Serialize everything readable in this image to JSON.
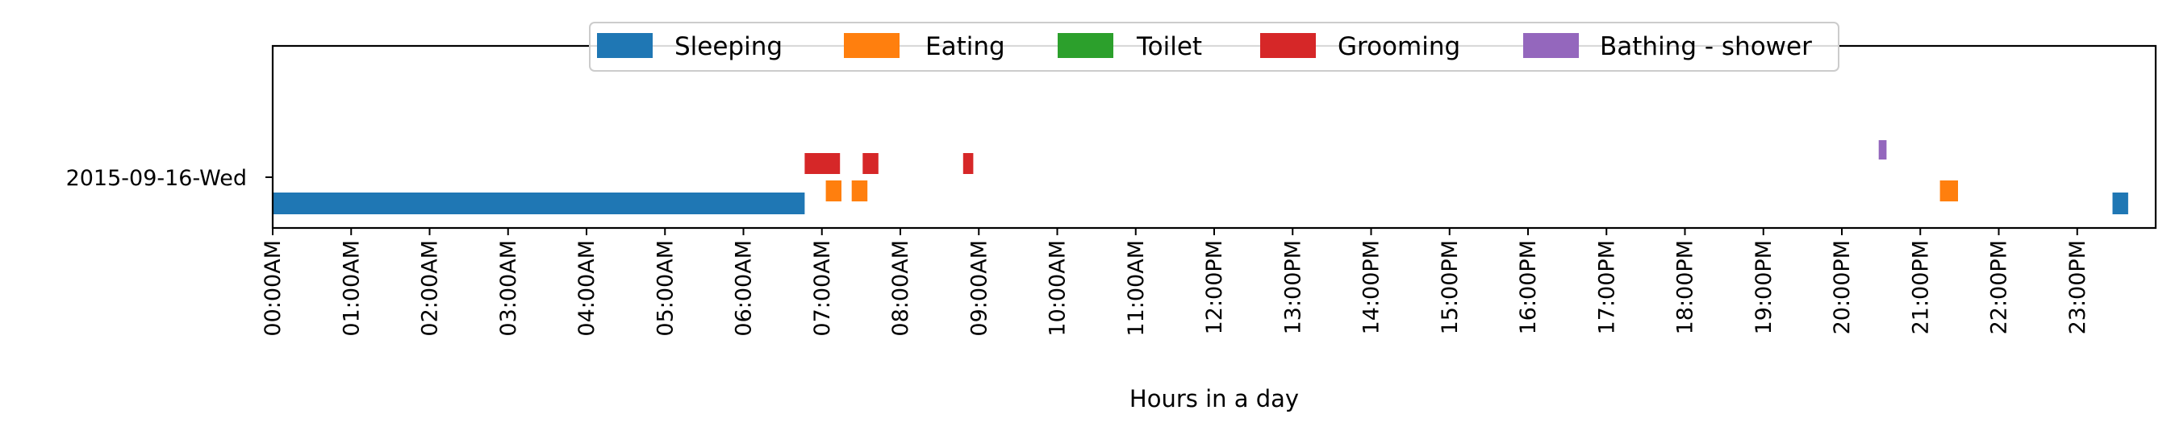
{
  "chart_data": {
    "type": "bar",
    "orientation": "horizontal-timeline",
    "title": "",
    "xlabel": "Hours in a day",
    "ylabel": "",
    "xlim_hours": [
      0,
      24
    ],
    "x_tick_labels": [
      "00:00AM",
      "01:00AM",
      "02:00AM",
      "03:00AM",
      "04:00AM",
      "05:00AM",
      "06:00AM",
      "07:00AM",
      "08:00AM",
      "09:00AM",
      "10:00AM",
      "11:00AM",
      "12:00PM",
      "13:00PM",
      "14:00PM",
      "15:00PM",
      "16:00PM",
      "17:00PM",
      "18:00PM",
      "19:00PM",
      "20:00PM",
      "21:00PM",
      "22:00PM",
      "23:00PM"
    ],
    "categories": [
      "2015-09-16-Wed"
    ],
    "grid": false,
    "legend_position": "top-center",
    "series": [
      {
        "name": "Sleeping",
        "color": "#1f77b4",
        "intervals": [
          {
            "start": 0.0,
            "end": 6.78
          },
          {
            "start": 23.45,
            "end": 23.65
          }
        ]
      },
      {
        "name": "Eating",
        "color": "#ff7f0e",
        "intervals": [
          {
            "start": 7.05,
            "end": 7.25
          },
          {
            "start": 7.38,
            "end": 7.58
          },
          {
            "start": 21.25,
            "end": 21.48
          }
        ]
      },
      {
        "name": "Toilet",
        "color": "#2ca02c",
        "intervals": []
      },
      {
        "name": "Grooming",
        "color": "#d62728",
        "intervals": [
          {
            "start": 6.78,
            "end": 7.23
          },
          {
            "start": 7.52,
            "end": 7.72
          },
          {
            "start": 8.8,
            "end": 8.93
          }
        ]
      },
      {
        "name": "Bathing - shower",
        "color": "#9467bd",
        "intervals": [
          {
            "start": 20.47,
            "end": 20.57
          }
        ]
      }
    ]
  }
}
